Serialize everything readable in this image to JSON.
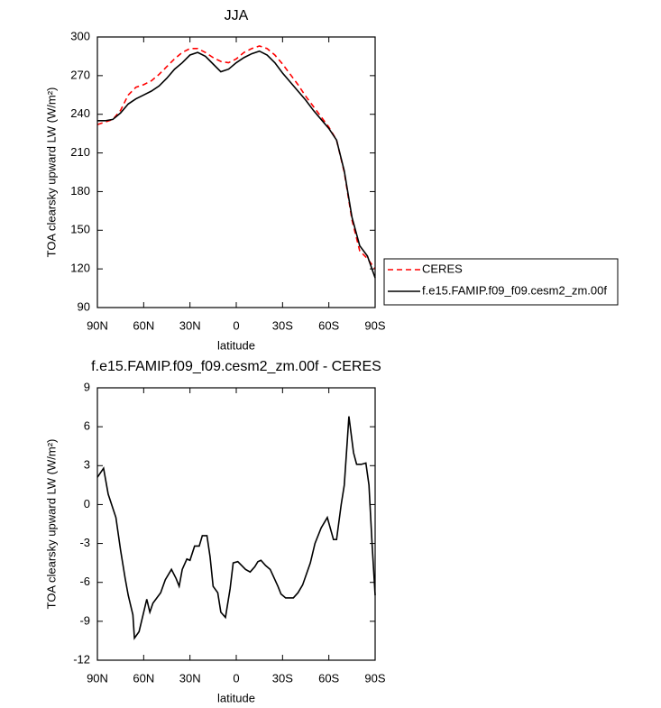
{
  "chart_data": [
    {
      "type": "line",
      "title": "JJA",
      "x_label": "latitude",
      "y_label": "TOA clearsky upward LW (W/m²)",
      "x": [
        90,
        85,
        80,
        75,
        70,
        65,
        60,
        55,
        50,
        45,
        40,
        35,
        30,
        25,
        20,
        15,
        10,
        5,
        0,
        -5,
        -10,
        -15,
        -20,
        -25,
        -30,
        -35,
        -40,
        -45,
        -50,
        -55,
        -60,
        -65,
        -70,
        -75,
        -80,
        -85,
        -90
      ],
      "series": [
        {
          "name": "CERES",
          "color": "#ff0000",
          "dashed": true,
          "values": [
            232,
            234,
            236,
            243,
            255,
            261,
            263,
            266,
            271,
            277,
            283,
            288,
            291,
            291,
            288,
            284,
            281,
            280,
            283,
            288,
            291,
            293,
            291,
            286,
            279,
            271,
            263,
            254,
            246,
            238,
            230,
            220,
            195,
            158,
            134,
            128,
            120
          ]
        },
        {
          "name": "f.e15.FAMIP.f09_f09.cesm2_zm.00f",
          "color": "#000000",
          "dashed": false,
          "values": [
            235,
            235,
            236,
            241,
            248,
            252,
            255,
            258,
            262,
            268,
            275,
            280,
            286,
            288,
            285,
            279,
            273,
            275,
            280,
            284,
            287,
            289,
            286,
            280,
            272,
            265,
            258,
            251,
            243,
            236,
            229,
            220,
            196,
            160,
            138,
            130,
            113
          ]
        }
      ],
      "xlim": [
        90,
        -90
      ],
      "xticks": [
        {
          "value": 90,
          "label": "90N"
        },
        {
          "value": 60,
          "label": "60N"
        },
        {
          "value": 30,
          "label": "30N"
        },
        0,
        {
          "value": -30,
          "label": "30S"
        },
        {
          "value": -60,
          "label": "60S"
        },
        {
          "value": -90,
          "label": "90S"
        }
      ],
      "ylim": [
        90,
        300
      ],
      "yticks": [
        90,
        120,
        150,
        180,
        210,
        240,
        270,
        300
      ],
      "legend": "right"
    },
    {
      "type": "line",
      "title": "f.e15.FAMIP.f09_f09.cesm2_zm.00f - CERES",
      "x_label": "latitude",
      "y_label": "TOA clearsky upward LW (W/m²)",
      "x": [
        90,
        86,
        83,
        78,
        75,
        72,
        70,
        67,
        66,
        63,
        58,
        56,
        54,
        49,
        46,
        42,
        39,
        37,
        35,
        32,
        30,
        27,
        24,
        22,
        19,
        17,
        15,
        12,
        10,
        7,
        4,
        2,
        -1,
        -6,
        -9,
        -12,
        -14,
        -16,
        -19,
        -22,
        -27,
        -29,
        -32,
        -37,
        -40,
        -43,
        -48,
        -51,
        -55,
        -59,
        -63,
        -65,
        -68,
        -70,
        -72,
        -73,
        -76,
        -78,
        -81,
        -84,
        -86,
        -88,
        -90
      ],
      "series": [
        {
          "color": "#000000",
          "dashed": false,
          "values": [
            2.1,
            2.8,
            0.8,
            -1,
            -3.5,
            -5.7,
            -7,
            -8.5,
            -10.3,
            -9.8,
            -7.3,
            -8.3,
            -7.6,
            -6.8,
            -5.8,
            -5,
            -5.7,
            -6.3,
            -5,
            -4.2,
            -4.3,
            -3.2,
            -3.2,
            -2.4,
            -2.4,
            -4,
            -6.3,
            -6.8,
            -8.3,
            -8.7,
            -6.5,
            -4.5,
            -4.4,
            -5,
            -5.2,
            -4.8,
            -4.4,
            -4.3,
            -4.7,
            -5,
            -6.3,
            -6.9,
            -7.2,
            -7.2,
            -6.8,
            -6.2,
            -4.5,
            -3,
            -1.8,
            -1,
            -2.7,
            -2.7,
            0,
            1.5,
            5,
            6.8,
            4,
            3.1,
            3.1,
            3.2,
            1.5,
            -3,
            -7
          ]
        }
      ],
      "xlim": [
        90,
        -90
      ],
      "xticks": [
        {
          "value": 90,
          "label": "90N"
        },
        {
          "value": 60,
          "label": "60N"
        },
        {
          "value": 30,
          "label": "30N"
        },
        0,
        {
          "value": -30,
          "label": "30S"
        },
        {
          "value": -60,
          "label": "60S"
        },
        {
          "value": -90,
          "label": "90S"
        }
      ],
      "ylim": [
        -12,
        9
      ],
      "yticks": [
        -12,
        -9,
        -6,
        -3,
        0,
        3,
        6,
        9
      ]
    }
  ]
}
